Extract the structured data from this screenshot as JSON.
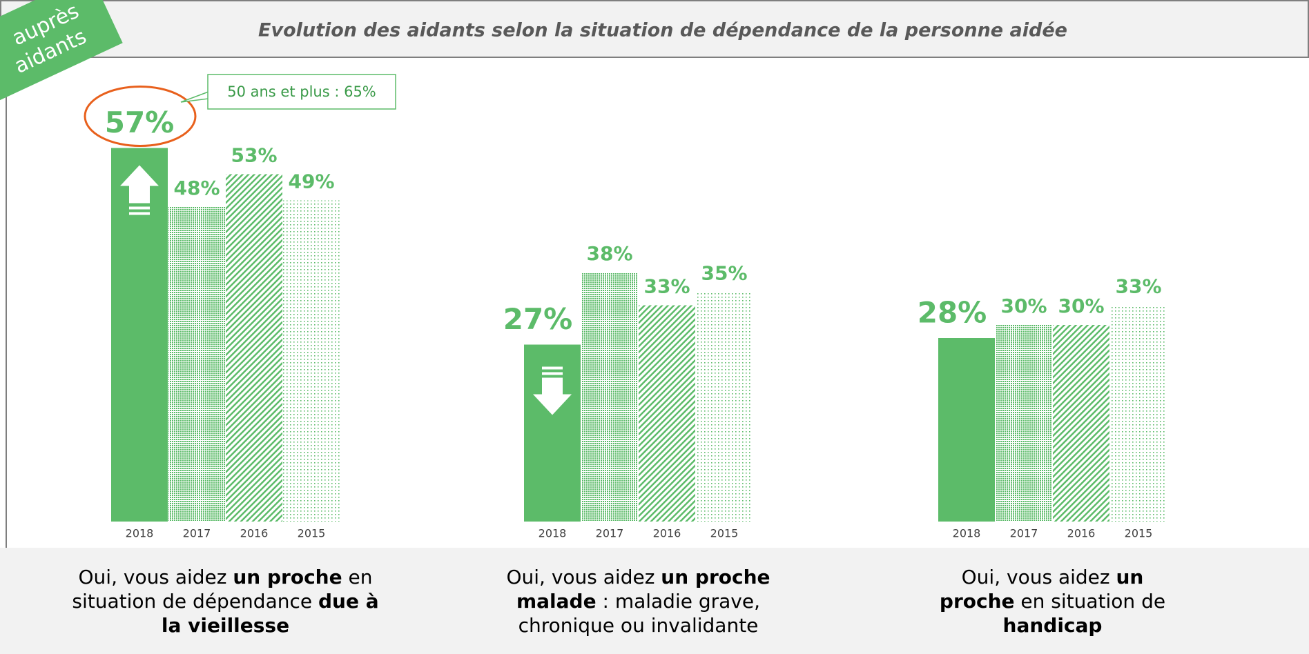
{
  "header": {
    "title": "Evolution des aidants selon la situation de dépendance de la personne aidée",
    "corner_tag": [
      "auprès",
      "aidants"
    ]
  },
  "chart_data": [
    {
      "type": "bar",
      "categories": [
        "2018",
        "2017",
        "2016",
        "2015"
      ],
      "values": [
        57,
        48,
        53,
        49
      ],
      "value_labels": [
        "57%",
        "48%",
        "53%",
        "49%"
      ],
      "color": "#5cbb69",
      "patterns": [
        "solid",
        "dense-dots",
        "hatch",
        "sparse-dots"
      ],
      "ylim": [
        0,
        60
      ],
      "trend": "up",
      "highlight": true,
      "annotation": "50 ans et plus : 65%",
      "caption": [
        [
          {
            "text": "Oui, vous aidez ",
            "bold": false
          },
          {
            "text": "un proche",
            "bold": true
          },
          {
            "text": " en",
            "bold": false
          }
        ],
        [
          {
            "text": "situation de dépendance ",
            "bold": false
          },
          {
            "text": "due à",
            "bold": true
          }
        ],
        [
          {
            "text": "la vieillesse",
            "bold": true
          }
        ]
      ]
    },
    {
      "type": "bar",
      "categories": [
        "2018",
        "2017",
        "2016",
        "2015"
      ],
      "values": [
        27,
        38,
        33,
        35
      ],
      "value_labels": [
        "27%",
        "38%",
        "33%",
        "35%"
      ],
      "color": "#5cbb69",
      "patterns": [
        "solid",
        "dense-dots",
        "hatch",
        "sparse-dots"
      ],
      "ylim": [
        0,
        60
      ],
      "trend": "down",
      "highlight": false,
      "caption": [
        [
          {
            "text": "Oui, vous aidez ",
            "bold": false
          },
          {
            "text": "un proche",
            "bold": true
          }
        ],
        [
          {
            "text": "malade",
            "bold": true
          },
          {
            "text": " : maladie grave,",
            "bold": false
          }
        ],
        [
          {
            "text": "chronique ou invalidante",
            "bold": false
          }
        ]
      ]
    },
    {
      "type": "bar",
      "categories": [
        "2018",
        "2017",
        "2016",
        "2015"
      ],
      "values": [
        28,
        30,
        30,
        33
      ],
      "value_labels": [
        "28%",
        "30%",
        "30%",
        "33%"
      ],
      "color": "#5cbb69",
      "patterns": [
        "solid",
        "dense-dots",
        "hatch",
        "sparse-dots"
      ],
      "ylim": [
        0,
        60
      ],
      "trend": null,
      "highlight": false,
      "caption": [
        [
          {
            "text": "Oui, vous aidez ",
            "bold": false
          },
          {
            "text": "un",
            "bold": true
          }
        ],
        [
          {
            "text": "proche",
            "bold": true
          },
          {
            "text": " en situation de",
            "bold": false
          }
        ],
        [
          {
            "text": "handicap",
            "bold": true
          }
        ]
      ]
    }
  ]
}
